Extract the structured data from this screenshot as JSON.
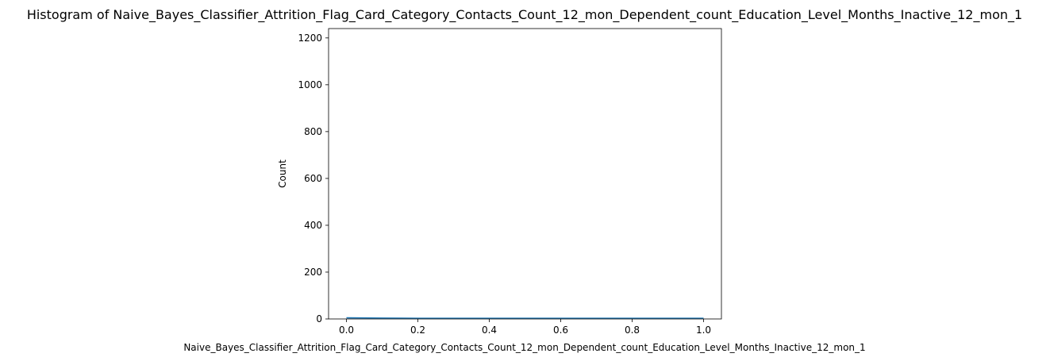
{
  "chart_data": {
    "type": "bar",
    "title": "Histogram of Naive_Bayes_Classifier_Attrition_Flag_Card_Category_Contacts_Count_12_mon_Dependent_count_Education_Level_Months_Inactive_12_mon_1",
    "xlabel": "Naive_Bayes_Classifier_Attrition_Flag_Card_Category_Contacts_Count_12_mon_Dependent_count_Education_Level_Months_Inactive_12_mon_1",
    "ylabel": "Count",
    "xlim": [
      -0.05,
      1.05
    ],
    "ylim": [
      0,
      1240
    ],
    "x_ticks": [
      0.0,
      0.2,
      0.4,
      0.6,
      0.8,
      1.0
    ],
    "x_tick_labels": [
      "0.0",
      "0.2",
      "0.4",
      "0.6",
      "0.8",
      "1.0"
    ],
    "y_ticks": [
      0,
      200,
      400,
      600,
      800,
      1000,
      1200
    ],
    "y_tick_labels": [
      "0",
      "200",
      "400",
      "600",
      "800",
      "1000",
      "1200"
    ],
    "bins": [
      {
        "x0": 0.0,
        "x1": 0.1,
        "value": 5
      },
      {
        "x0": 0.1,
        "x1": 0.2,
        "value": 4
      },
      {
        "x0": 0.2,
        "x1": 0.3,
        "value": 3
      },
      {
        "x0": 0.3,
        "x1": 0.4,
        "value": 3
      },
      {
        "x0": 0.4,
        "x1": 0.5,
        "value": 3
      },
      {
        "x0": 0.5,
        "x1": 0.6,
        "value": 3
      },
      {
        "x0": 0.6,
        "x1": 0.7,
        "value": 3
      },
      {
        "x0": 0.7,
        "x1": 0.8,
        "value": 3
      },
      {
        "x0": 0.8,
        "x1": 0.9,
        "value": 3
      },
      {
        "x0": 0.9,
        "x1": 1.0,
        "value": 3
      }
    ],
    "kde": {
      "x": [
        0.0,
        0.1,
        0.2,
        0.3,
        0.4,
        0.5,
        0.6,
        0.7,
        0.8,
        0.9,
        1.0
      ],
      "y": [
        5,
        4,
        3,
        3,
        3,
        3,
        3,
        3,
        3,
        3,
        3
      ]
    },
    "grid": false,
    "colors": {
      "bar_fill": "#4c78a8",
      "bar_edge": "#ffffff",
      "line": "#1f77b4",
      "axes": "#000000",
      "background": "#ffffff"
    }
  }
}
